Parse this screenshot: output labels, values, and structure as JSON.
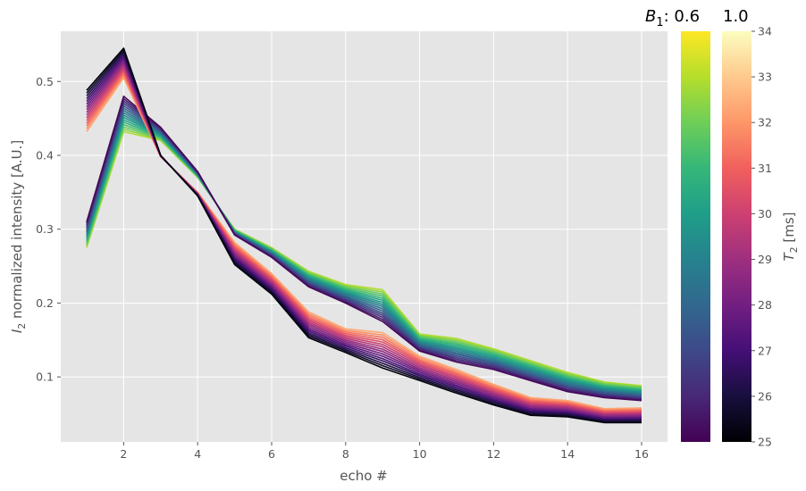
{
  "chart_data": {
    "type": "line",
    "xlabel": "echo #",
    "ylabel_var": "I",
    "ylabel_sub": "2",
    "ylabel_rest": " normalized intensity [A.U.]",
    "xlim": [
      0.3,
      16.7
    ],
    "ylim": [
      0.012,
      0.568
    ],
    "x_ticks": [
      2,
      4,
      6,
      8,
      10,
      12,
      14,
      16
    ],
    "x_tick_labels": [
      "2",
      "4",
      "6",
      "8",
      "10",
      "12",
      "14",
      "16"
    ],
    "y_ticks": [
      0.1,
      0.2,
      0.3,
      0.4,
      0.5
    ],
    "y_tick_labels": [
      "0.1",
      "0.2",
      "0.3",
      "0.4",
      "0.5"
    ],
    "grid": true,
    "echo": [
      1,
      2,
      3,
      4,
      5,
      6,
      7,
      8,
      9,
      10,
      11,
      12,
      13,
      14,
      15,
      16
    ],
    "b1_family": {
      "colormap": "viridis",
      "label_var": "B",
      "label_sub": "1",
      "label_rest": ": 0.6",
      "n_curves": 16,
      "curve_at_param_start": [
        0.275,
        0.432,
        0.42,
        0.37,
        0.3,
        0.275,
        0.243,
        0.225,
        0.218,
        0.158,
        0.152,
        0.138,
        0.122,
        0.106,
        0.093,
        0.088
      ],
      "curve_at_param_end": [
        0.31,
        0.48,
        0.438,
        0.378,
        0.292,
        0.262,
        0.222,
        0.2,
        0.175,
        0.135,
        0.12,
        0.11,
        0.095,
        0.08,
        0.072,
        0.068
      ]
    },
    "t2_family": {
      "colormap": "magma",
      "label": "1.0",
      "n_curves": 16,
      "curve_at_low_t2": [
        0.488,
        0.545,
        0.4,
        0.345,
        0.252,
        0.212,
        0.153,
        0.133,
        0.112,
        0.095,
        0.078,
        0.062,
        0.048,
        0.046,
        0.038,
        0.038
      ],
      "curve_at_high_t2": [
        0.432,
        0.505,
        0.398,
        0.35,
        0.282,
        0.24,
        0.188,
        0.165,
        0.16,
        0.128,
        0.11,
        0.09,
        0.072,
        0.068,
        0.057,
        0.058
      ]
    },
    "colorbar_t2": {
      "label_var": "T",
      "label_sub": "2",
      "label_rest": " [ms]",
      "min": 25,
      "max": 34,
      "ticks": [
        25,
        26,
        27,
        28,
        29,
        30,
        31,
        32,
        33,
        34
      ],
      "tick_labels": [
        "25",
        "26",
        "27",
        "28",
        "29",
        "30",
        "31",
        "32",
        "33",
        "34"
      ]
    }
  }
}
